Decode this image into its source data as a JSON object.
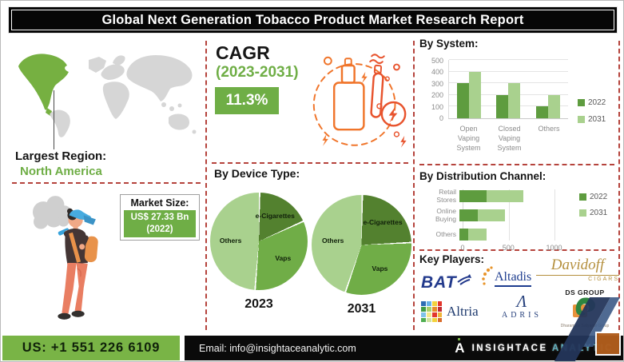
{
  "title": "Global Next Generation Tobacco Product Market Research Report",
  "left": {
    "largest_region_label": "Largest Region:",
    "largest_region_value": "North America",
    "market_size_label": "Market Size:",
    "market_size_value": "US$ 27.33 Bn",
    "market_size_year": "(2022)"
  },
  "cagr": {
    "label": "CAGR",
    "period": "(2023-2031)",
    "value": "11.3%"
  },
  "sections": {
    "device_type_label": "By Device Type:",
    "key_players_label": "Key Players:"
  },
  "key_players": [
    {
      "name": "BAT"
    },
    {
      "name": "Altadis"
    },
    {
      "name": "Davidoff",
      "sub": "CIGARS"
    },
    {
      "name": "Altria"
    },
    {
      "name": "ADRIS",
      "mark": "Λ"
    },
    {
      "name": "DS GROUP",
      "sub": "Dharampal Satyapal Group"
    }
  ],
  "footer": {
    "phone": "US: +1 551 226 6109",
    "email": "Email: info@insightaceanalytic.com",
    "brand_part1": "INSIGHTACE ",
    "brand_part2": "ANALYTIC"
  },
  "colors": {
    "accent_green": "#6fae46",
    "series_2022": "#5e9c3f",
    "series_2031": "#a9d18e",
    "pie_dark": "#53812f",
    "pie_mid": "#70ad47",
    "pie_light": "#a9d18e",
    "red_dash": "#b5433c",
    "orange_illustration": "#f0752b"
  },
  "chart_data": [
    {
      "id": "by-system",
      "type": "bar",
      "title": "By System:",
      "categories": [
        "Open Vaping System",
        "Closed Vaping System",
        "Others"
      ],
      "series": [
        {
          "name": "2022",
          "color": "#5e9c3f",
          "values": [
            300,
            200,
            100
          ]
        },
        {
          "name": "2031",
          "color": "#a9d18e",
          "values": [
            400,
            300,
            200
          ]
        }
      ],
      "ylim": [
        0,
        500
      ],
      "yticks": [
        0,
        100,
        200,
        300,
        400,
        500
      ],
      "legend_position": "right",
      "grid": true
    },
    {
      "id": "device-2023",
      "type": "pie",
      "year_label": "2023",
      "slices": [
        {
          "name": "e-Cigarettes",
          "pct": 18,
          "color": "#53812f",
          "label_r": 0.62
        },
        {
          "name": "Vaps",
          "pct": 33,
          "color": "#70ad47",
          "label_r": 0.6
        },
        {
          "name": "Others",
          "pct": 49,
          "color": "#a9d18e",
          "label_r": 0.58
        }
      ]
    },
    {
      "id": "device-2031",
      "type": "pie",
      "year_label": "2031",
      "slices": [
        {
          "name": "e-Cigarettes",
          "pct": 24,
          "color": "#53812f",
          "label_r": 0.62
        },
        {
          "name": "Vaps",
          "pct": 31,
          "color": "#70ad47",
          "label_r": 0.6
        },
        {
          "name": "Others",
          "pct": 45,
          "color": "#a9d18e",
          "label_r": 0.58
        }
      ]
    },
    {
      "id": "distribution",
      "type": "stacked-bar",
      "title": "By Distribution Channel:",
      "categories": [
        "Retail Stores",
        "Online Buying",
        "Others"
      ],
      "series": [
        {
          "name": "2022",
          "color": "#5e9c3f",
          "values": [
            300,
            200,
            100
          ]
        },
        {
          "name": "2031",
          "color": "#a9d18e",
          "values": [
            400,
            300,
            200
          ]
        }
      ],
      "xlim": [
        0,
        1100
      ],
      "xticks": [
        0,
        500,
        1000
      ],
      "legend_position": "right"
    }
  ]
}
